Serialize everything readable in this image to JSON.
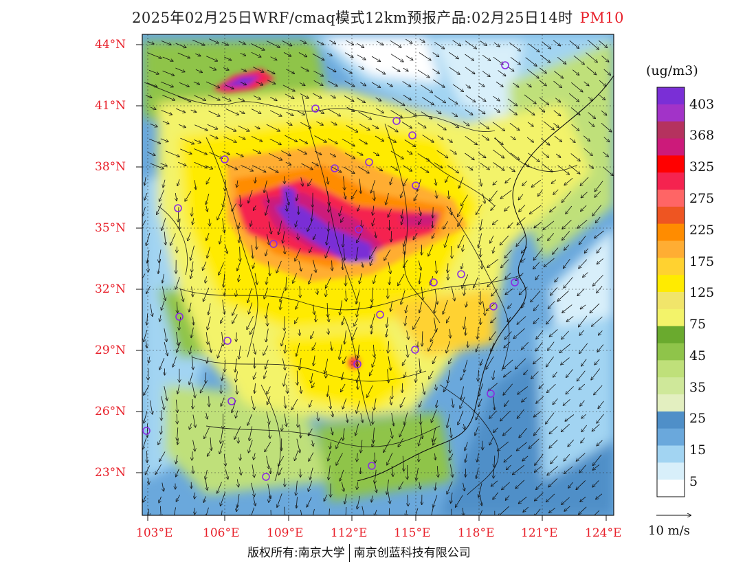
{
  "title": {
    "main": "2025年02月25日WRF/cmaq模式12km预报产品:02月25日14时",
    "pollutant": "PM10"
  },
  "lat_labels": [
    "44°N",
    "41°N",
    "38°N",
    "35°N",
    "32°N",
    "29°N",
    "26°N",
    "23°N"
  ],
  "lon_labels": [
    "103°E",
    "106°E",
    "109°E",
    "112°E",
    "115°E",
    "118°E",
    "121°E",
    "124°E"
  ],
  "colorbar": {
    "unit": "(ug/m3)",
    "labels": [
      "403",
      "368",
      "325",
      "275",
      "225",
      "175",
      "125",
      "75",
      "45",
      "35",
      "25",
      "15",
      "5"
    ],
    "colors": [
      "#7a2fd6",
      "#a233c8",
      "#b5325e",
      "#cc1a7a",
      "#ff0000",
      "#f5234f",
      "#ff6565",
      "#ee5522",
      "#ff8c00",
      "#ffad33",
      "#ffd230",
      "#ffeb00",
      "#f1e56a",
      "#f3f36a",
      "#6aaa2e",
      "#8fc44a",
      "#bfe07a",
      "#cfe89a",
      "#e3efc0",
      "#4f8fc8",
      "#6aa8dc",
      "#a2d4f2",
      "#d8effa",
      "#ffffff"
    ],
    "wind_scale": "10 m/s"
  },
  "cities_count_note": "",
  "footer": {
    "left": "版权所有:南京大学",
    "right": "南京创蓝科技有限公司"
  }
}
